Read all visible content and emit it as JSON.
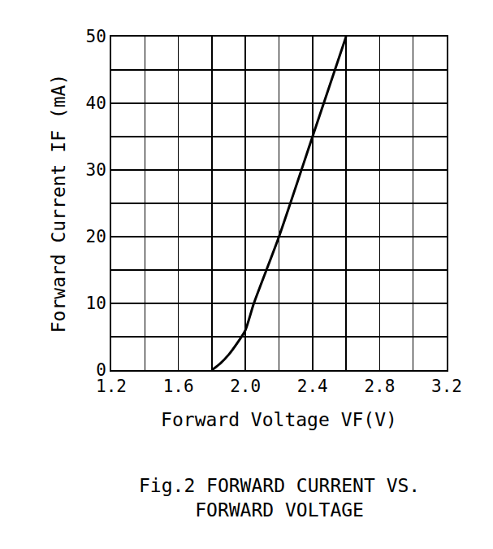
{
  "chart_data": {
    "type": "line",
    "title": "Fig.2 FORWARD CURRENT VS. FORWARD VOLTAGE",
    "x_label": "Forward Voltage VF(V)",
    "y_label": "Forward Current IF (mA)",
    "x": [
      1.8,
      1.85,
      1.9,
      1.95,
      2.0,
      2.05,
      2.2,
      2.4,
      2.6
    ],
    "values": [
      0,
      1,
      2.3,
      4,
      6,
      10,
      20,
      35,
      50
    ],
    "color": "#000000",
    "xlim": [
      1.2,
      3.2
    ],
    "xticks": [
      1.2,
      1.6,
      {
        "value": 2,
        "label": "2.0"
      },
      2.4,
      2.8,
      3.2
    ],
    "ylim": [
      0,
      50
    ],
    "yticks": [
      0,
      10,
      20,
      30,
      40,
      50
    ],
    "grid": true
  }
}
